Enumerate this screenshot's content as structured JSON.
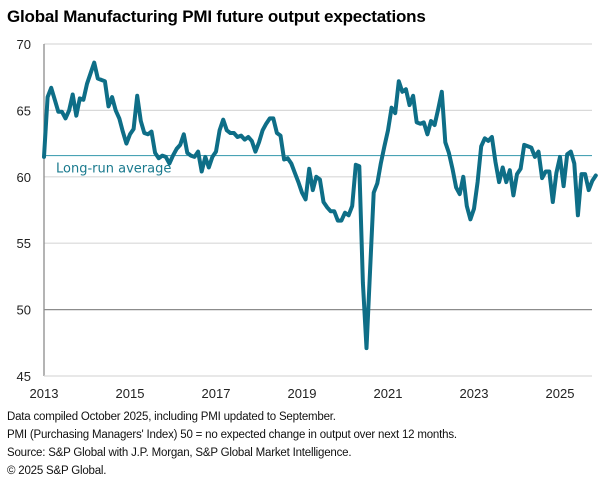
{
  "title": "Global Manufacturing PMI future output expectations",
  "footer": {
    "lines": [
      "Data compiled October 2025, including PMI updated to September.",
      "PMI (Purchasing Managers' Index) 50 = no expected change in output over next 12 months.",
      "Source: S&P Global with J.P. Morgan, S&P Global Market Intelligence.",
      "© 2025 S&P Global."
    ]
  },
  "colors": {
    "series": "#0e6e87",
    "average_line": "#4aa3b5",
    "average_label": "#1a7a8e",
    "grid": "#d9d9d9",
    "fifty_line": "#8c8c8c",
    "axis": "#8c8c8c"
  },
  "chart_data": {
    "type": "line",
    "title": "Global Manufacturing PMI future output expectations",
    "xlabel": "",
    "ylabel": "",
    "ylim": [
      45,
      70
    ],
    "xlim": [
      2013.0,
      2025.9
    ],
    "y_ticks": [
      45,
      50,
      55,
      60,
      65,
      70
    ],
    "x_ticks": [
      2013,
      2015,
      2017,
      2019,
      2021,
      2023,
      2025
    ],
    "x_tick_labels": [
      "2013",
      "2015",
      "2017",
      "2019",
      "2021",
      "2023",
      "2025"
    ],
    "grid": true,
    "legend": "none",
    "reference_lines": [
      {
        "name": "Long-run average",
        "value": 61.6,
        "label": "Long-run average"
      },
      {
        "name": "No change",
        "value": 50,
        "label": ""
      }
    ],
    "series": [
      {
        "name": "Future output expectations",
        "start": "2013-01",
        "frequency": "monthly",
        "values": [
          61.5,
          66.0,
          66.7,
          65.8,
          64.9,
          64.9,
          64.4,
          65.0,
          66.2,
          64.6,
          65.9,
          65.8,
          67.0,
          67.8,
          68.6,
          67.4,
          67.3,
          67.2,
          65.3,
          66.0,
          65.0,
          64.4,
          63.4,
          62.5,
          63.2,
          63.6,
          66.1,
          64.2,
          63.3,
          63.2,
          63.4,
          61.8,
          61.4,
          61.6,
          61.5,
          61.0,
          61.6,
          62.1,
          62.4,
          63.2,
          61.8,
          61.6,
          61.5,
          61.9,
          60.4,
          61.5,
          60.7,
          61.5,
          61.9,
          63.5,
          64.3,
          63.5,
          63.3,
          63.3,
          63.0,
          63.1,
          62.8,
          63.0,
          62.7,
          61.9,
          62.6,
          63.5,
          64.0,
          64.4,
          64.4,
          63.3,
          63.1,
          61.3,
          61.4,
          61.0,
          60.3,
          59.6,
          58.8,
          58.3,
          60.6,
          59.0,
          60.0,
          59.8,
          58.1,
          57.7,
          57.4,
          57.4,
          56.7,
          56.7,
          57.3,
          57.1,
          57.8,
          60.9,
          60.8,
          52.0,
          47.1,
          53.0,
          58.8,
          59.5,
          61.0,
          62.3,
          63.5,
          65.2,
          64.8,
          67.2,
          66.4,
          66.6,
          65.4,
          66.1,
          64.1,
          64.0,
          64.1,
          63.2,
          64.2,
          63.9,
          65.1,
          66.4,
          62.6,
          61.8,
          60.6,
          59.2,
          58.7,
          60.0,
          57.8,
          56.8,
          57.6,
          59.6,
          62.3,
          62.9,
          62.7,
          63.0,
          61.1,
          59.6,
          60.7,
          59.6,
          60.5,
          58.6,
          60.2,
          60.6,
          62.4,
          62.3,
          62.2,
          61.5,
          61.9,
          59.9,
          60.4,
          60.4,
          58.1,
          60.3,
          61.5,
          59.3,
          61.7,
          61.9,
          61.0,
          57.1,
          60.2,
          60.2,
          59.0,
          59.7,
          60.1
        ]
      }
    ]
  }
}
